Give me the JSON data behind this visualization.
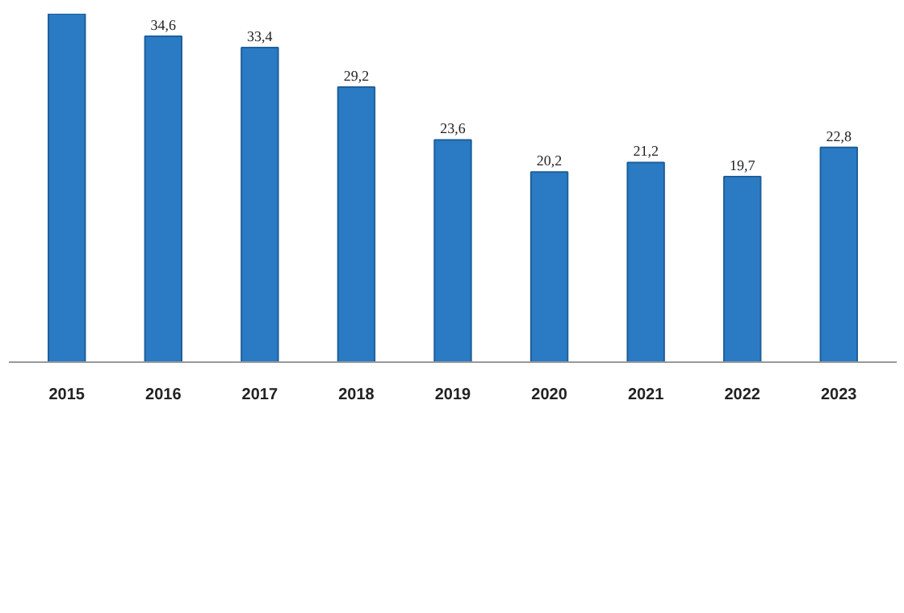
{
  "chart_data": {
    "type": "bar",
    "categories": [
      "2015",
      "2016",
      "2017",
      "2018",
      "2019",
      "2020",
      "2021",
      "2022",
      "2023"
    ],
    "values": [
      37,
      34.6,
      33.4,
      29.2,
      23.6,
      20.2,
      21.2,
      19.7,
      22.8
    ],
    "value_labels": [
      null,
      "34,6",
      "33,4",
      "29,2",
      "23,6",
      "20,2",
      "21,2",
      "19,7",
      "22,8"
    ],
    "color": "#2a7bc4",
    "ylim": [
      0,
      37
    ],
    "tick_labels": "x",
    "grid": false
  }
}
